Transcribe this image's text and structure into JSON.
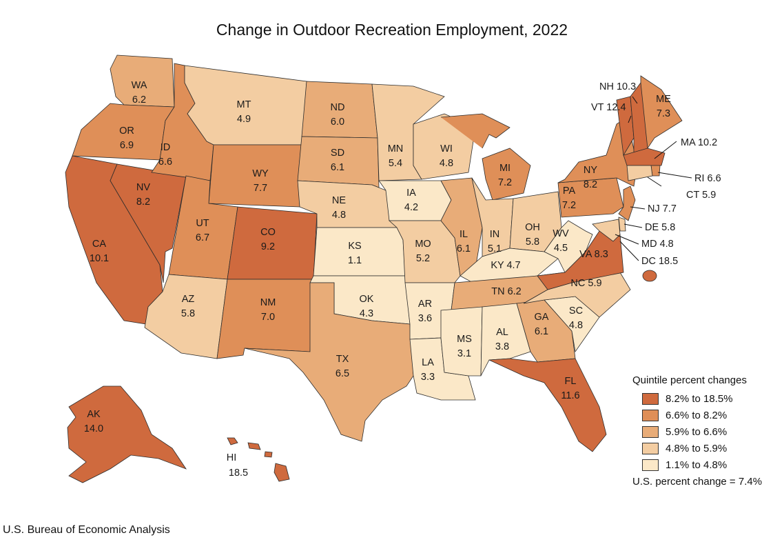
{
  "title": "Change in Outdoor Recreation Employment, 2022",
  "source": "U.S. Bureau of Economic Analysis",
  "legend": {
    "title": "Quintile percent changes",
    "items": [
      {
        "label": "8.2% to 18.5%",
        "color": "#cf6a3e"
      },
      {
        "label": "6.6% to 8.2%",
        "color": "#df8f58"
      },
      {
        "label": "5.9% to 6.6%",
        "color": "#e8ac78"
      },
      {
        "label": "4.8% to 5.9%",
        "color": "#f3cda2"
      },
      {
        "label": "1.1% to 4.8%",
        "color": "#fbe8c8"
      }
    ],
    "us_change": "U.S. percent change = 7.4%"
  },
  "states": {
    "WA": {
      "abbr": "WA",
      "value": "6.2",
      "quintile": 2
    },
    "OR": {
      "abbr": "OR",
      "value": "6.9",
      "quintile": 1
    },
    "CA": {
      "abbr": "CA",
      "value": "10.1",
      "quintile": 0
    },
    "NV": {
      "abbr": "NV",
      "value": "8.2",
      "quintile": 0
    },
    "ID": {
      "abbr": "ID",
      "value": "6.6",
      "quintile": 1
    },
    "MT": {
      "abbr": "MT",
      "value": "4.9",
      "quintile": 3
    },
    "WY": {
      "abbr": "WY",
      "value": "7.7",
      "quintile": 1
    },
    "UT": {
      "abbr": "UT",
      "value": "6.7",
      "quintile": 1
    },
    "AZ": {
      "abbr": "AZ",
      "value": "5.8",
      "quintile": 3
    },
    "CO": {
      "abbr": "CO",
      "value": "9.2",
      "quintile": 0
    },
    "NM": {
      "abbr": "NM",
      "value": "7.0",
      "quintile": 1
    },
    "ND": {
      "abbr": "ND",
      "value": "6.0",
      "quintile": 2
    },
    "SD": {
      "abbr": "SD",
      "value": "6.1",
      "quintile": 2
    },
    "NE": {
      "abbr": "NE",
      "value": "4.8",
      "quintile": 3
    },
    "KS": {
      "abbr": "KS",
      "value": "1.1",
      "quintile": 4
    },
    "OK": {
      "abbr": "OK",
      "value": "4.3",
      "quintile": 4
    },
    "TX": {
      "abbr": "TX",
      "value": "6.5",
      "quintile": 2
    },
    "MN": {
      "abbr": "MN",
      "value": "5.4",
      "quintile": 3
    },
    "IA": {
      "abbr": "IA",
      "value": "4.2",
      "quintile": 4
    },
    "MO": {
      "abbr": "MO",
      "value": "5.2",
      "quintile": 3
    },
    "AR": {
      "abbr": "AR",
      "value": "3.6",
      "quintile": 4
    },
    "LA": {
      "abbr": "LA",
      "value": "3.3",
      "quintile": 4
    },
    "WI": {
      "abbr": "WI",
      "value": "4.8",
      "quintile": 3
    },
    "IL": {
      "abbr": "IL",
      "value": "6.1",
      "quintile": 2
    },
    "MI": {
      "abbr": "MI",
      "value": "7.2",
      "quintile": 1
    },
    "IN": {
      "abbr": "IN",
      "value": "5.1",
      "quintile": 3
    },
    "OH": {
      "abbr": "OH",
      "value": "5.8",
      "quintile": 3
    },
    "KY": {
      "abbr": "KY",
      "value": "4.7",
      "quintile": 4
    },
    "TN": {
      "abbr": "TN",
      "value": "6.2",
      "quintile": 2
    },
    "MS": {
      "abbr": "MS",
      "value": "3.1",
      "quintile": 4
    },
    "AL": {
      "abbr": "AL",
      "value": "3.8",
      "quintile": 4
    },
    "GA": {
      "abbr": "GA",
      "value": "6.1",
      "quintile": 2
    },
    "FL": {
      "abbr": "FL",
      "value": "11.6",
      "quintile": 0
    },
    "SC": {
      "abbr": "SC",
      "value": "4.8",
      "quintile": 4
    },
    "NC": {
      "abbr": "NC",
      "value": "5.9",
      "quintile": 3
    },
    "VA": {
      "abbr": "VA",
      "value": "8.3",
      "quintile": 0
    },
    "WV": {
      "abbr": "WV",
      "value": "4.5",
      "quintile": 4
    },
    "PA": {
      "abbr": "PA",
      "value": "7.2",
      "quintile": 1
    },
    "NY": {
      "abbr": "NY",
      "value": "8.2",
      "quintile": 1
    },
    "ME": {
      "abbr": "ME",
      "value": "7.3",
      "quintile": 1
    },
    "VT": {
      "abbr": "VT",
      "value": "12.4",
      "quintile": 0
    },
    "NH": {
      "abbr": "NH",
      "value": "10.3",
      "quintile": 0
    },
    "MA": {
      "abbr": "MA",
      "value": "10.2",
      "quintile": 0
    },
    "RI": {
      "abbr": "RI",
      "value": "6.6",
      "quintile": 1
    },
    "CT": {
      "abbr": "CT",
      "value": "5.9",
      "quintile": 3
    },
    "NJ": {
      "abbr": "NJ",
      "value": "7.7",
      "quintile": 1
    },
    "DE": {
      "abbr": "DE",
      "value": "5.8",
      "quintile": 3
    },
    "MD": {
      "abbr": "MD",
      "value": "4.8",
      "quintile": 3
    },
    "DC": {
      "abbr": "DC",
      "value": "18.5",
      "quintile": 0
    },
    "AK": {
      "abbr": "AK",
      "value": "14.0",
      "quintile": 0
    },
    "HI": {
      "abbr": "HI",
      "value": "18.5",
      "quintile": 0
    }
  }
}
